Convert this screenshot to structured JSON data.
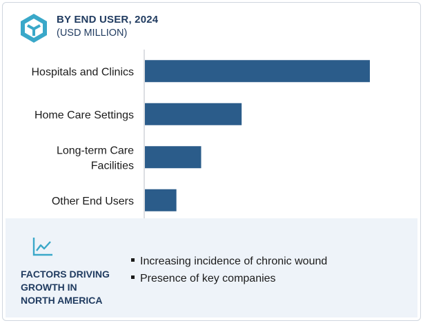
{
  "header": {
    "title": "BY END USER, 2024",
    "subtitle": "(USD MILLION)",
    "logo_icon": "cube-logo-icon"
  },
  "chart_data": {
    "type": "bar",
    "orientation": "horizontal",
    "categories": [
      [
        "Hospitals and Clinics"
      ],
      [
        "Home Care Settings"
      ],
      [
        "Long-term Care",
        "Facilities"
      ],
      [
        "Other End Users"
      ]
    ],
    "relative_values": [
      1.0,
      0.43,
      0.25,
      0.14
    ],
    "grid": false,
    "color": "#2b5c8a"
  },
  "factors": {
    "icon": "trend-line-icon",
    "title_lines": [
      "FACTORS DRIVING",
      "GROWTH IN",
      "NORTH AMERICA"
    ],
    "items": [
      "Increasing incidence of chronic wound",
      "Presence of key companies"
    ]
  }
}
